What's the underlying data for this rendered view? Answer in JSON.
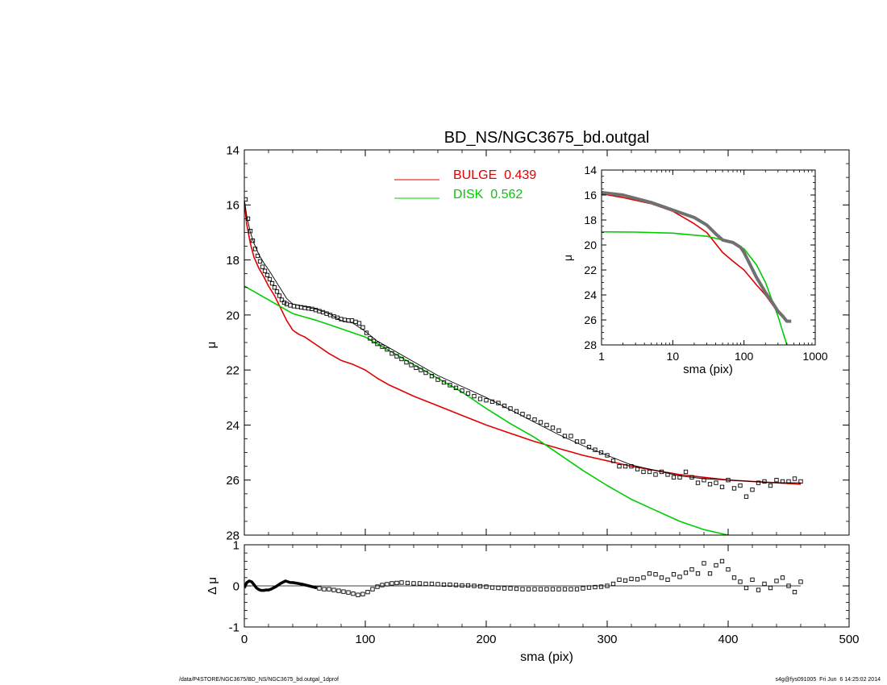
{
  "footer": {
    "path": "/data/P4STORE/NGC3675/BD_NS/NGC3675_bd.outgal_1dprof",
    "stamp": "s4g@fys091005  Fri Jun  6 14:25:02 2014"
  },
  "chart_data": [
    {
      "id": "main",
      "type": "line",
      "title": "BD_NS/NGC3675_bd.outgal",
      "xlabel": "",
      "ylabel": "μ",
      "xlim": [
        0,
        500
      ],
      "ylim": [
        28,
        14
      ],
      "xticks": [
        0,
        100,
        200,
        300,
        400,
        500
      ],
      "yticks": [
        14,
        16,
        18,
        20,
        22,
        24,
        26,
        28
      ],
      "grid": false,
      "legend_position": "top-center",
      "series": [
        {
          "name": "BULGE  0.439",
          "kind": "line",
          "color": "#e00000",
          "x": [
            0,
            2,
            5,
            8,
            12,
            16,
            20,
            25,
            30,
            35,
            40,
            45,
            50,
            60,
            70,
            80,
            90,
            100,
            110,
            120,
            140,
            160,
            180,
            200,
            220,
            240,
            260,
            280,
            300,
            320,
            340,
            360,
            380,
            400,
            420,
            440,
            460
          ],
          "y": [
            15.9,
            16.7,
            17.4,
            17.9,
            18.3,
            18.6,
            18.95,
            19.3,
            19.75,
            20.2,
            20.55,
            20.7,
            20.8,
            21.1,
            21.4,
            21.65,
            21.8,
            22.0,
            22.3,
            22.55,
            22.95,
            23.3,
            23.65,
            24.0,
            24.3,
            24.6,
            24.85,
            25.1,
            25.3,
            25.5,
            25.65,
            25.8,
            25.9,
            26.0,
            26.05,
            26.1,
            26.15
          ]
        },
        {
          "name": "DISK  0.562",
          "kind": "line",
          "color": "#00cc00",
          "x": [
            0,
            20,
            40,
            60,
            80,
            100,
            120,
            140,
            160,
            180,
            200,
            220,
            240,
            260,
            280,
            300,
            320,
            340,
            360,
            380,
            400,
            404
          ],
          "y": [
            18.95,
            19.45,
            19.95,
            20.2,
            20.5,
            20.8,
            21.3,
            21.8,
            22.3,
            22.8,
            23.4,
            23.95,
            24.45,
            25.05,
            25.65,
            26.2,
            26.7,
            27.1,
            27.5,
            27.8,
            28.0,
            28.05
          ]
        },
        {
          "name": "",
          "kind": "thin-line",
          "color": "#000000",
          "x": [
            0,
            2,
            5,
            8,
            12,
            16,
            20,
            25,
            30,
            35,
            40,
            45,
            50,
            60,
            70,
            80,
            90,
            100,
            110,
            120,
            140,
            160,
            180,
            200,
            220,
            240,
            260,
            280,
            300,
            320,
            340,
            360,
            380,
            400,
            420,
            440,
            460
          ],
          "y": [
            15.8,
            16.4,
            17.0,
            17.4,
            17.8,
            18.1,
            18.35,
            18.7,
            19.05,
            19.4,
            19.6,
            19.65,
            19.7,
            19.8,
            19.95,
            20.2,
            20.3,
            20.6,
            20.95,
            21.2,
            21.7,
            22.2,
            22.6,
            23.0,
            23.45,
            23.9,
            24.35,
            24.75,
            25.1,
            25.45,
            25.65,
            25.85,
            25.95,
            26.0,
            26.05,
            26.1,
            26.1
          ]
        },
        {
          "name": "",
          "kind": "markers",
          "color": "#000000",
          "x": [
            1,
            3,
            5,
            7,
            9,
            11,
            13,
            15,
            17,
            19,
            21,
            23,
            25,
            27,
            29,
            31,
            33,
            35,
            38,
            41,
            44,
            47,
            50,
            53,
            56,
            59,
            62,
            65,
            68,
            71,
            74,
            77,
            80,
            83,
            86,
            89,
            92,
            95,
            98,
            101,
            104,
            107,
            110,
            114,
            118,
            122,
            126,
            130,
            134,
            138,
            142,
            146,
            150,
            155,
            160,
            165,
            170,
            175,
            180,
            185,
            190,
            195,
            200,
            205,
            210,
            215,
            220,
            225,
            230,
            235,
            240,
            245,
            250,
            255,
            260,
            265,
            270,
            275,
            280,
            285,
            290,
            295,
            300,
            305,
            310,
            315,
            320,
            325,
            330,
            335,
            340,
            345,
            350,
            355,
            360,
            365,
            370,
            375,
            380,
            385,
            390,
            395,
            400,
            405,
            410,
            415,
            420,
            425,
            430,
            435,
            440,
            445,
            450,
            455,
            460
          ],
          "y": [
            15.8,
            16.5,
            16.95,
            17.3,
            17.6,
            17.85,
            18.05,
            18.25,
            18.4,
            18.55,
            18.7,
            18.85,
            19.0,
            19.15,
            19.3,
            19.45,
            19.55,
            19.6,
            19.65,
            19.68,
            19.7,
            19.72,
            19.74,
            19.76,
            19.78,
            19.82,
            19.86,
            19.9,
            19.95,
            20.0,
            20.05,
            20.1,
            20.15,
            20.18,
            20.2,
            20.2,
            20.25,
            20.3,
            20.45,
            20.65,
            20.85,
            20.95,
            21.05,
            21.15,
            21.25,
            21.4,
            21.5,
            21.6,
            21.72,
            21.82,
            21.92,
            22.0,
            22.1,
            22.22,
            22.35,
            22.45,
            22.55,
            22.65,
            22.75,
            22.85,
            22.95,
            23.05,
            23.1,
            23.15,
            23.2,
            23.3,
            23.4,
            23.5,
            23.6,
            23.7,
            23.8,
            23.9,
            24.0,
            24.1,
            24.2,
            24.4,
            24.4,
            24.6,
            24.6,
            24.8,
            24.9,
            25.0,
            25.1,
            25.3,
            25.5,
            25.5,
            25.5,
            25.6,
            25.7,
            25.7,
            25.8,
            25.7,
            25.8,
            25.9,
            25.9,
            25.7,
            25.9,
            26.1,
            26.0,
            26.15,
            26.1,
            26.25,
            26.0,
            26.3,
            26.2,
            26.6,
            26.35,
            26.1,
            26.05,
            26.2,
            26.0,
            26.05,
            26.05,
            25.95,
            26.05
          ]
        }
      ]
    },
    {
      "id": "inset",
      "type": "line",
      "xscale": "log",
      "xlabel": "sma (pix)",
      "ylabel": "μ",
      "xlim": [
        1,
        1000
      ],
      "ylim": [
        28,
        14
      ],
      "xticks": [
        1,
        10,
        100,
        1000
      ],
      "yticks": [
        14,
        16,
        18,
        20,
        22,
        24,
        26,
        28
      ],
      "series": [
        {
          "name": "",
          "kind": "line",
          "color": "#e00000",
          "x": [
            1,
            2,
            5,
            10,
            20,
            30,
            40,
            50,
            70,
            100,
            150,
            200,
            300,
            400
          ],
          "y": [
            15.9,
            16.2,
            16.7,
            17.3,
            18.3,
            19.0,
            19.9,
            20.6,
            21.3,
            22.0,
            23.2,
            24.0,
            25.4,
            26.1
          ]
        },
        {
          "name": "",
          "kind": "line",
          "color": "#00cc00",
          "x": [
            1,
            3,
            10,
            30,
            60,
            100,
            150,
            200,
            300,
            400
          ],
          "y": [
            18.95,
            18.97,
            19.05,
            19.3,
            19.7,
            20.3,
            21.6,
            23.0,
            25.7,
            28.0
          ]
        },
        {
          "name": "",
          "kind": "thick-line",
          "color": "#707070",
          "x": [
            1,
            2,
            5,
            10,
            20,
            30,
            40,
            50,
            70,
            90,
            100,
            120,
            150,
            200,
            250,
            300,
            350,
            400,
            460
          ],
          "y": [
            15.8,
            16.0,
            16.6,
            17.2,
            17.8,
            18.4,
            19.1,
            19.6,
            19.8,
            20.2,
            20.6,
            21.5,
            22.6,
            23.8,
            24.6,
            25.3,
            25.7,
            26.1,
            26.1
          ]
        }
      ]
    },
    {
      "id": "residual",
      "type": "scatter",
      "xlabel": "sma (pix)",
      "ylabel": "Δ μ",
      "xlim": [
        0,
        500
      ],
      "ylim": [
        -1,
        1
      ],
      "xticks": [
        0,
        100,
        200,
        300,
        400,
        500
      ],
      "yticks": [
        -1,
        0,
        1
      ],
      "series": [
        {
          "name": "",
          "kind": "thick-line",
          "color": "#000000",
          "x": [
            0,
            2,
            4,
            6,
            8,
            10,
            12,
            14,
            16,
            18,
            20,
            22,
            24,
            26,
            28,
            30,
            32,
            34,
            36,
            38,
            40,
            44,
            48,
            52,
            56,
            60
          ],
          "y": [
            -0.05,
            0.08,
            0.12,
            0.1,
            0.03,
            -0.05,
            -0.09,
            -0.11,
            -0.11,
            -0.1,
            -0.1,
            -0.08,
            -0.05,
            -0.02,
            0.02,
            0.06,
            0.09,
            0.12,
            0.1,
            0.08,
            0.08,
            0.06,
            0.04,
            0.01,
            -0.02,
            -0.05
          ]
        },
        {
          "name": "",
          "kind": "markers",
          "color": "#000000",
          "x": [
            62,
            66,
            70,
            74,
            78,
            82,
            86,
            90,
            94,
            98,
            102,
            106,
            110,
            114,
            118,
            122,
            126,
            130,
            135,
            140,
            145,
            150,
            155,
            160,
            165,
            170,
            175,
            180,
            185,
            190,
            195,
            200,
            205,
            210,
            215,
            220,
            225,
            230,
            235,
            240,
            245,
            250,
            255,
            260,
            265,
            270,
            275,
            280,
            285,
            290,
            295,
            300,
            305,
            310,
            315,
            320,
            325,
            330,
            335,
            340,
            345,
            350,
            355,
            360,
            365,
            370,
            375,
            380,
            385,
            390,
            395,
            400,
            405,
            410,
            415,
            420,
            425,
            430,
            435,
            440,
            445,
            450,
            455,
            460
          ],
          "y": [
            -0.06,
            -0.08,
            -0.08,
            -0.1,
            -0.12,
            -0.14,
            -0.16,
            -0.19,
            -0.22,
            -0.2,
            -0.15,
            -0.08,
            -0.02,
            0.02,
            0.04,
            0.06,
            0.07,
            0.08,
            0.07,
            0.06,
            0.06,
            0.05,
            0.05,
            0.04,
            0.03,
            0.03,
            0.02,
            0.01,
            0.01,
            0.0,
            -0.01,
            -0.02,
            -0.04,
            -0.05,
            -0.06,
            -0.06,
            -0.07,
            -0.08,
            -0.08,
            -0.08,
            -0.08,
            -0.08,
            -0.08,
            -0.08,
            -0.08,
            -0.08,
            -0.08,
            -0.06,
            -0.04,
            -0.03,
            -0.02,
            0.0,
            0.05,
            0.15,
            0.13,
            0.17,
            0.16,
            0.2,
            0.3,
            0.28,
            0.2,
            0.15,
            0.28,
            0.22,
            0.32,
            0.4,
            0.3,
            0.55,
            0.3,
            0.5,
            0.6,
            0.4,
            0.2,
            0.1,
            -0.05,
            0.15,
            -0.1,
            0.05,
            -0.05,
            0.12,
            0.2,
            0.0,
            -0.15,
            0.1
          ]
        }
      ]
    }
  ]
}
